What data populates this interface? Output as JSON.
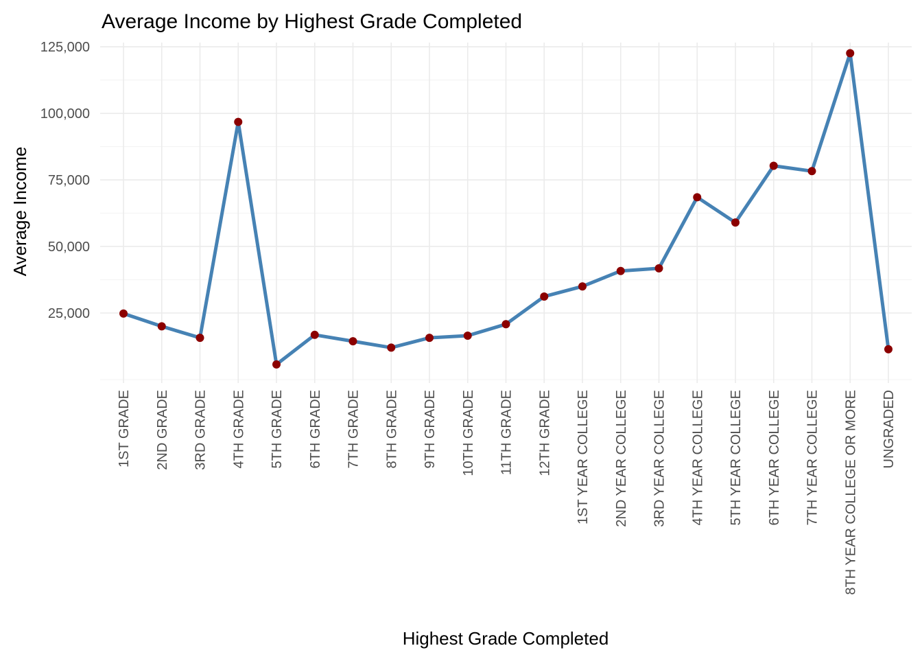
{
  "chart_data": {
    "type": "line",
    "title": "Average Income by Highest Grade Completed",
    "xlabel": "Highest Grade Completed",
    "ylabel": "Average Income",
    "categories": [
      "1ST GRADE",
      "2ND GRADE",
      "3RD GRADE",
      "4TH GRADE",
      "5TH GRADE",
      "6TH GRADE",
      "7TH GRADE",
      "8TH GRADE",
      "9TH GRADE",
      "10TH GRADE",
      "11TH GRADE",
      "12TH GRADE",
      "1ST YEAR COLLEGE",
      "2ND YEAR COLLEGE",
      "3RD YEAR COLLEGE",
      "4TH YEAR COLLEGE",
      "5TH YEAR COLLEGE",
      "6TH YEAR COLLEGE",
      "7TH YEAR COLLEGE",
      "8TH YEAR COLLEGE OR MORE",
      "UNGRADED"
    ],
    "series": [
      {
        "name": "Average Income",
        "values": [
          24800,
          20000,
          15700,
          96800,
          5700,
          16800,
          14400,
          12000,
          15700,
          16500,
          20800,
          31200,
          35000,
          40800,
          41800,
          68500,
          59000,
          80300,
          78300,
          122600,
          11400
        ]
      }
    ],
    "yticks": [
      25000,
      50000,
      75000,
      100000,
      125000
    ],
    "ytick_labels": [
      "25,000",
      "50,000",
      "75,000",
      "100,000",
      "125,000"
    ],
    "ylim": [
      -1300,
      126600
    ],
    "grid": true,
    "line_color": "#4682b4",
    "point_color": "#8b0000"
  }
}
